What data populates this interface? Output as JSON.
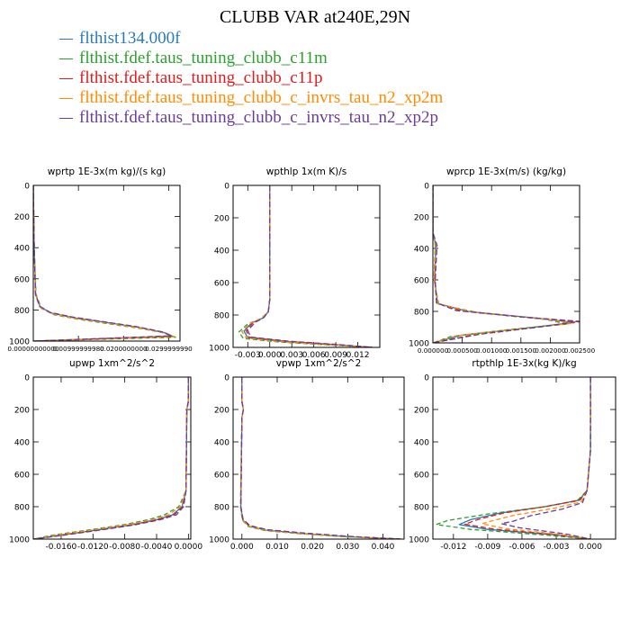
{
  "title": "CLUBB VAR at240E,29N",
  "colors": {
    "flthist134.000f": "#2b7bb9",
    "c11m": "#2ca02c",
    "c11p": "#e31a1c",
    "xp2m": "#ff8c00",
    "xp2p": "#6a3d9a"
  },
  "legend": [
    {
      "label": "flthist134.000f",
      "color": "#2b7bb9"
    },
    {
      "label": "flthist.fdef.taus_tuning_clubb_c11m",
      "color": "#2ca02c"
    },
    {
      "label": "flthist.fdef.taus_tuning_clubb_c11p",
      "color": "#e31a1c"
    },
    {
      "label": "flthist.fdef.taus_tuning_clubb_c_invrs_tau_n2_xp2m",
      "color": "#ff8c00"
    },
    {
      "label": "flthist.fdef.taus_tuning_clubb_c_invrs_tau_n2_xp2p",
      "color": "#6a3d9a"
    }
  ],
  "chart_data": [
    {
      "type": "line",
      "title": "wprtp  1E-3x(m kg)/(s kg)",
      "xlim": [
        0.0,
        0.0325
      ],
      "ylim": [
        1000,
        0
      ],
      "xticks": [
        0.0,
        0.01,
        0.02,
        0.03
      ],
      "xtick_labels": [
        "0.00000000000",
        "0.00999999980",
        "0.0200000000",
        "0.0299999990"
      ],
      "yticks": [
        0,
        200,
        400,
        600,
        800,
        1000
      ],
      "series": [
        {
          "x": [
            0.0,
            0.0002,
            0.0005,
            0.0015,
            0.004,
            0.009,
            0.016,
            0.023,
            0.029,
            0.031,
            0.0
          ],
          "y": [
            0,
            400,
            700,
            780,
            820,
            850,
            880,
            910,
            945,
            970,
            1000
          ]
        },
        {
          "x": [
            0.0,
            0.0002,
            0.0006,
            0.0018,
            0.0045,
            0.01,
            0.017,
            0.024,
            0.0295,
            0.0315,
            0.0
          ],
          "y": [
            0,
            400,
            700,
            790,
            830,
            860,
            890,
            920,
            950,
            975,
            1000
          ]
        },
        {
          "x": [
            0.0,
            0.0002,
            0.0005,
            0.0014,
            0.0038,
            0.0088,
            0.0158,
            0.0228,
            0.0288,
            0.0308,
            0.0
          ],
          "y": [
            0,
            400,
            700,
            778,
            818,
            848,
            878,
            908,
            943,
            968,
            1000
          ]
        },
        {
          "x": [
            0.0,
            0.0002,
            0.0005,
            0.0016,
            0.0042,
            0.0095,
            0.0165,
            0.0235,
            0.0292,
            0.0312,
            0.0
          ],
          "y": [
            0,
            400,
            700,
            785,
            825,
            855,
            885,
            915,
            948,
            972,
            1000
          ]
        },
        {
          "x": [
            0.0,
            0.0002,
            0.0005,
            0.0014,
            0.0037,
            0.0086,
            0.0155,
            0.0225,
            0.0285,
            0.0305,
            0.0
          ],
          "y": [
            0,
            400,
            700,
            775,
            815,
            845,
            875,
            905,
            940,
            966,
            1000
          ]
        }
      ]
    },
    {
      "type": "line",
      "title": "wpthlp  1x(m K)/s",
      "xlim": [
        -0.005,
        0.015
      ],
      "ylim": [
        1000,
        0
      ],
      "xticks": [
        -0.003,
        0.0,
        0.003,
        0.006,
        0.009,
        0.012
      ],
      "xtick_labels": [
        "-0.003",
        "0.000",
        "0.003",
        "0.006",
        "0.009",
        "0.012"
      ],
      "yticks": [
        0,
        200,
        400,
        600,
        800,
        1000
      ],
      "series": [
        {
          "x": [
            0.0,
            0.0,
            -0.0002,
            -0.001,
            -0.0025,
            -0.0035,
            -0.003,
            0.002,
            0.009,
            0.014
          ],
          "y": [
            0,
            700,
            780,
            820,
            850,
            900,
            940,
            965,
            985,
            1000
          ]
        },
        {
          "x": [
            0.0,
            0.0,
            -0.0002,
            -0.0012,
            -0.003,
            -0.0042,
            -0.0036,
            0.0015,
            0.0085,
            0.014
          ],
          "y": [
            0,
            700,
            780,
            822,
            855,
            905,
            945,
            968,
            986,
            1000
          ]
        },
        {
          "x": [
            0.0,
            0.0,
            -0.0002,
            -0.0009,
            -0.0023,
            -0.0032,
            -0.0028,
            0.0022,
            0.0092,
            0.014
          ],
          "y": [
            0,
            700,
            780,
            818,
            848,
            898,
            938,
            963,
            984,
            1000
          ]
        },
        {
          "x": [
            0.0,
            0.0,
            -0.0002,
            -0.0011,
            -0.0027,
            -0.0038,
            -0.0032,
            0.0018,
            0.0088,
            0.014
          ],
          "y": [
            0,
            700,
            780,
            821,
            852,
            903,
            942,
            966,
            985,
            1000
          ]
        },
        {
          "x": [
            0.0,
            0.0,
            -0.0002,
            -0.0008,
            -0.002,
            -0.003,
            -0.0026,
            0.0025,
            0.0095,
            0.014
          ],
          "y": [
            0,
            700,
            780,
            816,
            846,
            896,
            936,
            961,
            983,
            1000
          ]
        }
      ]
    },
    {
      "type": "line",
      "title": "wprcp  1E-3x(m/s) (kg/kg)",
      "xlim": [
        0.0,
        0.0025
      ],
      "ylim": [
        1000,
        0
      ],
      "xticks": [
        0.0,
        0.0005,
        0.001,
        0.0015,
        0.002,
        0.0025
      ],
      "xtick_labels": [
        "0.000000",
        "0.000500",
        "0.001000",
        "0.001500",
        "0.002000",
        "0.002500"
      ],
      "yticks": [
        0,
        200,
        400,
        600,
        800,
        1000
      ],
      "series": [
        {
          "x": [
            0.0,
            0.0,
            5e-05,
            3e-05,
            8e-05,
            0.0006,
            0.0017,
            0.0024,
            0.0016,
            0.0005,
            0.0
          ],
          "y": [
            0,
            300,
            380,
            600,
            750,
            800,
            840,
            870,
            905,
            950,
            1000
          ]
        },
        {
          "x": [
            0.0,
            0.0,
            4e-05,
            2e-05,
            0.0001,
            0.0008,
            0.0019,
            0.0023,
            0.0013,
            0.0003,
            0.0
          ],
          "y": [
            0,
            300,
            380,
            600,
            755,
            810,
            850,
            880,
            915,
            960,
            1000
          ]
        },
        {
          "x": [
            0.0,
            0.0,
            6e-05,
            3e-05,
            7e-05,
            0.0005,
            0.0016,
            0.0025,
            0.0018,
            0.0007,
            0.0
          ],
          "y": [
            0,
            300,
            380,
            600,
            748,
            798,
            838,
            866,
            900,
            948,
            1000
          ]
        },
        {
          "x": [
            0.0,
            0.0,
            5e-05,
            2e-05,
            9e-05,
            0.0007,
            0.0018,
            0.0024,
            0.0015,
            0.0004,
            0.0
          ],
          "y": [
            0,
            300,
            380,
            600,
            752,
            805,
            845,
            875,
            910,
            955,
            1000
          ]
        },
        {
          "x": [
            0.0,
            0.0,
            7e-05,
            4e-05,
            6e-05,
            0.0004,
            0.0015,
            0.0025,
            0.0019,
            0.0008,
            0.0
          ],
          "y": [
            0,
            300,
            380,
            600,
            745,
            795,
            835,
            863,
            895,
            945,
            1000
          ]
        }
      ]
    },
    {
      "type": "line",
      "title": "upwp  1xm^2/s^2",
      "xlim": [
        -0.0195,
        0.0003
      ],
      "ylim": [
        1000,
        0
      ],
      "xticks": [
        -0.016,
        -0.012,
        -0.008,
        -0.004,
        0.0
      ],
      "xtick_labels": [
        "-0.0160",
        "-0.0120",
        "-0.0080",
        "-0.0040",
        "0.0000"
      ],
      "yticks": [
        0,
        200,
        400,
        600,
        800,
        1000
      ],
      "series": [
        {
          "x": [
            0.0,
            0.0,
            -0.0002,
            -0.0003,
            -0.0008,
            -0.002,
            -0.004,
            -0.007,
            -0.011,
            -0.016,
            -0.0195
          ],
          "y": [
            0,
            150,
            200,
            700,
            800,
            850,
            880,
            910,
            940,
            975,
            1000
          ]
        },
        {
          "x": [
            0.0,
            0.0,
            -0.0002,
            -0.0003,
            -0.0012,
            -0.003,
            -0.005,
            -0.008,
            -0.012,
            -0.017,
            -0.0195
          ],
          "y": [
            0,
            150,
            200,
            700,
            800,
            850,
            880,
            910,
            940,
            975,
            1000
          ]
        },
        {
          "x": [
            0.0,
            0.0,
            -0.0002,
            -0.0003,
            -0.0007,
            -0.0018,
            -0.0038,
            -0.0068,
            -0.0108,
            -0.0158,
            -0.0195
          ],
          "y": [
            0,
            150,
            200,
            700,
            800,
            850,
            880,
            910,
            940,
            975,
            1000
          ]
        },
        {
          "x": [
            0.0,
            0.0,
            -0.0002,
            -0.0003,
            -0.001,
            -0.0025,
            -0.0045,
            -0.0075,
            -0.0115,
            -0.0165,
            -0.0195
          ],
          "y": [
            0,
            150,
            200,
            700,
            800,
            850,
            880,
            910,
            940,
            975,
            1000
          ]
        },
        {
          "x": [
            0.0,
            0.0,
            -0.0002,
            -0.0003,
            -0.0006,
            -0.0015,
            -0.0035,
            -0.0065,
            -0.0105,
            -0.0155,
            -0.0195
          ],
          "y": [
            0,
            150,
            200,
            700,
            800,
            850,
            880,
            910,
            940,
            975,
            1000
          ]
        }
      ]
    },
    {
      "type": "line",
      "title": "vpwp  1xm^2/s^2",
      "xlim": [
        -0.0025,
        0.046
      ],
      "ylim": [
        1000,
        0
      ],
      "xticks": [
        0.0,
        0.01,
        0.02,
        0.03,
        0.04
      ],
      "xtick_labels": [
        "0.000",
        "0.010",
        "0.020",
        "0.030",
        "0.040"
      ],
      "yticks": [
        0,
        200,
        400,
        600,
        800,
        1000
      ],
      "series": [
        {
          "x": [
            0.0,
            0.0,
            0.0004,
            0.0,
            -0.0003,
            0.0002,
            0.002,
            0.007,
            0.017,
            0.03,
            0.045
          ],
          "y": [
            0,
            150,
            200,
            250,
            800,
            880,
            920,
            945,
            965,
            985,
            1000
          ]
        },
        {
          "x": [
            0.0,
            0.0,
            0.0004,
            0.0,
            -0.0004,
            0.0001,
            0.0018,
            0.0065,
            0.0165,
            0.0295,
            0.045
          ],
          "y": [
            0,
            150,
            200,
            250,
            800,
            882,
            922,
            947,
            967,
            986,
            1000
          ]
        },
        {
          "x": [
            0.0,
            0.0,
            0.0004,
            0.0,
            -0.0003,
            0.0003,
            0.0022,
            0.0072,
            0.0172,
            0.0302,
            0.045
          ],
          "y": [
            0,
            150,
            200,
            250,
            800,
            878,
            918,
            943,
            963,
            984,
            1000
          ]
        },
        {
          "x": [
            0.0,
            0.0,
            0.0004,
            0.0,
            -0.0004,
            0.0002,
            0.0019,
            0.0068,
            0.0168,
            0.0298,
            0.045
          ],
          "y": [
            0,
            150,
            200,
            250,
            800,
            880,
            920,
            946,
            966,
            985,
            1000
          ]
        },
        {
          "x": [
            0.0,
            0.0,
            0.0004,
            0.0,
            -0.0003,
            0.0003,
            0.0023,
            0.0074,
            0.0174,
            0.0304,
            0.045
          ],
          "y": [
            0,
            150,
            200,
            250,
            800,
            877,
            917,
            942,
            962,
            983,
            1000
          ]
        }
      ]
    },
    {
      "type": "line",
      "title": "rtpthlp  1E-3x(kg K)/kg",
      "xlim": [
        -0.0138,
        0.0022
      ],
      "ylim": [
        1000,
        0
      ],
      "xticks": [
        -0.012,
        -0.009,
        -0.006,
        -0.003,
        0.0
      ],
      "xtick_labels": [
        "-0.012",
        "-0.009",
        "-0.006",
        "-0.003",
        "0.000"
      ],
      "yticks": [
        0,
        200,
        400,
        600,
        800,
        1000
      ],
      "series": [
        {
          "x": [
            0.0,
            0.0,
            -0.0003,
            -0.001,
            -0.004,
            -0.008,
            -0.0105,
            -0.0115,
            -0.009,
            -0.003,
            0.0
          ],
          "y": [
            0,
            450,
            700,
            760,
            800,
            840,
            880,
            910,
            940,
            975,
            1000
          ]
        },
        {
          "x": [
            0.0,
            0.0,
            -0.0003,
            -0.0012,
            -0.0045,
            -0.009,
            -0.0125,
            -0.0135,
            -0.0105,
            -0.004,
            0.0
          ],
          "y": [
            0,
            450,
            700,
            765,
            805,
            845,
            885,
            910,
            940,
            975,
            1000
          ]
        },
        {
          "x": [
            0.0,
            0.0,
            -0.0003,
            -0.0009,
            -0.0038,
            -0.0075,
            -0.0098,
            -0.011,
            -0.0085,
            -0.0028,
            0.0
          ],
          "y": [
            0,
            450,
            700,
            758,
            798,
            838,
            878,
            908,
            938,
            974,
            1000
          ]
        },
        {
          "x": [
            0.0,
            0.0,
            -0.0003,
            -0.0008,
            -0.0032,
            -0.0065,
            -0.0085,
            -0.0095,
            -0.0075,
            -0.0025,
            0.0
          ],
          "y": [
            0,
            450,
            700,
            770,
            810,
            850,
            885,
            905,
            935,
            972,
            1000
          ]
        },
        {
          "x": [
            0.0,
            0.0,
            -0.0003,
            -0.0007,
            -0.0025,
            -0.0052,
            -0.0068,
            -0.0078,
            -0.0062,
            -0.002,
            0.0
          ],
          "y": [
            0,
            450,
            700,
            775,
            815,
            855,
            890,
            905,
            930,
            970,
            1000
          ]
        }
      ]
    }
  ]
}
